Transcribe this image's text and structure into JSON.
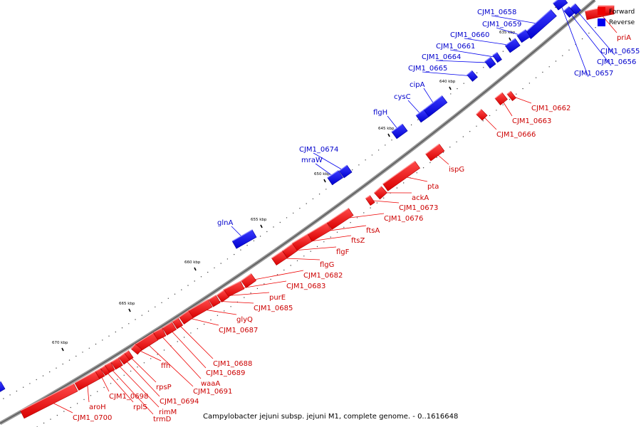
{
  "caption": "Campylobacter jejuni subsp. jejuni M1, complete genome. - 0..1616648",
  "legend": {
    "forward_label": "Forward",
    "reverse_label": "Reverse",
    "forward_color": "#ee0000",
    "reverse_color": "#0000ee"
  },
  "kbp_labels": [
    "635 kbp",
    "640 kbp",
    "645 kbp",
    "650 kbp",
    "655 kbp",
    "660 kbp",
    "665 kbp",
    "670 kbp"
  ],
  "genes": [
    {
      "name": "priA",
      "strand": "forward"
    },
    {
      "name": "CJM1_0655",
      "strand": "reverse"
    },
    {
      "name": "CJM1_0656",
      "strand": "reverse"
    },
    {
      "name": "CJM1_0657",
      "strand": "reverse"
    },
    {
      "name": "CJM1_0658",
      "strand": "reverse"
    },
    {
      "name": "CJM1_0659",
      "strand": "reverse"
    },
    {
      "name": "CJM1_0660",
      "strand": "reverse"
    },
    {
      "name": "CJM1_0661",
      "strand": "reverse"
    },
    {
      "name": "CJM1_0664",
      "strand": "reverse"
    },
    {
      "name": "CJM1_0665",
      "strand": "reverse"
    },
    {
      "name": "CJM1_0662",
      "strand": "forward"
    },
    {
      "name": "CJM1_0663",
      "strand": "forward"
    },
    {
      "name": "CJM1_0666",
      "strand": "forward"
    },
    {
      "name": "cipA",
      "strand": "reverse"
    },
    {
      "name": "cysC",
      "strand": "reverse"
    },
    {
      "name": "flgH",
      "strand": "reverse"
    },
    {
      "name": "ispG",
      "strand": "forward"
    },
    {
      "name": "CJM1_0674",
      "strand": "reverse"
    },
    {
      "name": "mraW",
      "strand": "reverse"
    },
    {
      "name": "pta",
      "strand": "forward"
    },
    {
      "name": "ackA",
      "strand": "forward"
    },
    {
      "name": "CJM1_0673",
      "strand": "forward"
    },
    {
      "name": "CJM1_0676",
      "strand": "forward"
    },
    {
      "name": "ftsA",
      "strand": "forward"
    },
    {
      "name": "ftsZ",
      "strand": "forward"
    },
    {
      "name": "flgF",
      "strand": "forward"
    },
    {
      "name": "glnA",
      "strand": "reverse"
    },
    {
      "name": "flgG",
      "strand": "forward"
    },
    {
      "name": "CJM1_0682",
      "strand": "forward"
    },
    {
      "name": "CJM1_0683",
      "strand": "forward"
    },
    {
      "name": "purE",
      "strand": "forward"
    },
    {
      "name": "CJM1_0685",
      "strand": "forward"
    },
    {
      "name": "glyQ",
      "strand": "forward"
    },
    {
      "name": "CJM1_0687",
      "strand": "forward"
    },
    {
      "name": "CJM1_0688",
      "strand": "forward"
    },
    {
      "name": "CJM1_0689",
      "strand": "forward"
    },
    {
      "name": "waaA",
      "strand": "forward"
    },
    {
      "name": "CJM1_0691",
      "strand": "forward"
    },
    {
      "name": "ffh",
      "strand": "forward"
    },
    {
      "name": "rpsP",
      "strand": "forward"
    },
    {
      "name": "CJM1_0694",
      "strand": "forward"
    },
    {
      "name": "rimM",
      "strand": "forward"
    },
    {
      "name": "trmD",
      "strand": "forward"
    },
    {
      "name": "rplS",
      "strand": "forward"
    },
    {
      "name": "CJM1_0698",
      "strand": "forward"
    },
    {
      "name": "aroH",
      "strand": "forward"
    },
    {
      "name": "CJM1_0700",
      "strand": "forward"
    }
  ]
}
